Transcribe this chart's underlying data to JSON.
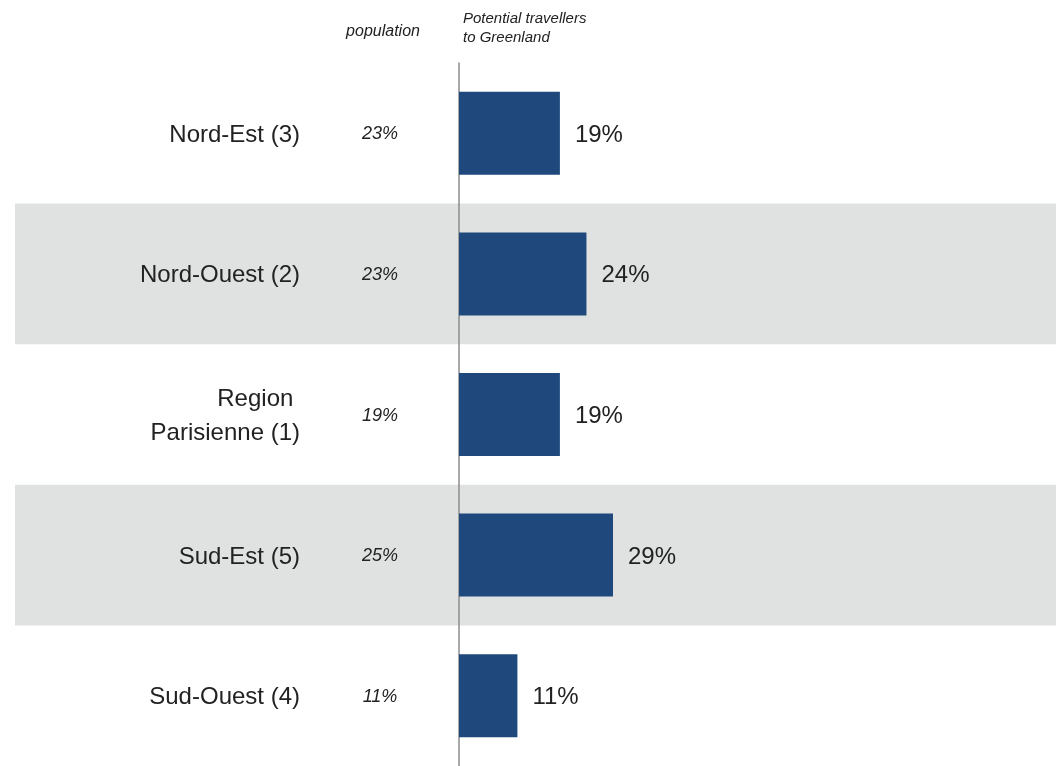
{
  "chart_data": {
    "type": "bar",
    "orientation": "horizontal",
    "xlabel": "Potential travellers\nto Greenland",
    "categories": [
      "Nord-Est (3)",
      "Nord-Ouest (2)",
      "Region Parisienne (1)",
      "Sud-Est (5)",
      "Sud-Ouest (4)"
    ],
    "values": [
      19,
      24,
      19,
      29,
      11
    ],
    "color": "#1f497d",
    "value_labels": [
      "19%",
      "24%",
      "19%",
      "29%",
      "11%"
    ],
    "bands": [
      {
        "axis": "y",
        "from": "Nord-Ouest (2)",
        "to": "Nord-Ouest (2)",
        "color": "#e0e1e1"
      },
      {
        "axis": "y",
        "from": "Sud-Est (5)",
        "to": "Sud-Est (5)",
        "color": "#e0e1e1"
      }
    ],
    "annotations": [
      "population",
      "23%",
      "23%",
      "19%",
      "25%",
      "11%"
    ],
    "grid": false
  }
}
